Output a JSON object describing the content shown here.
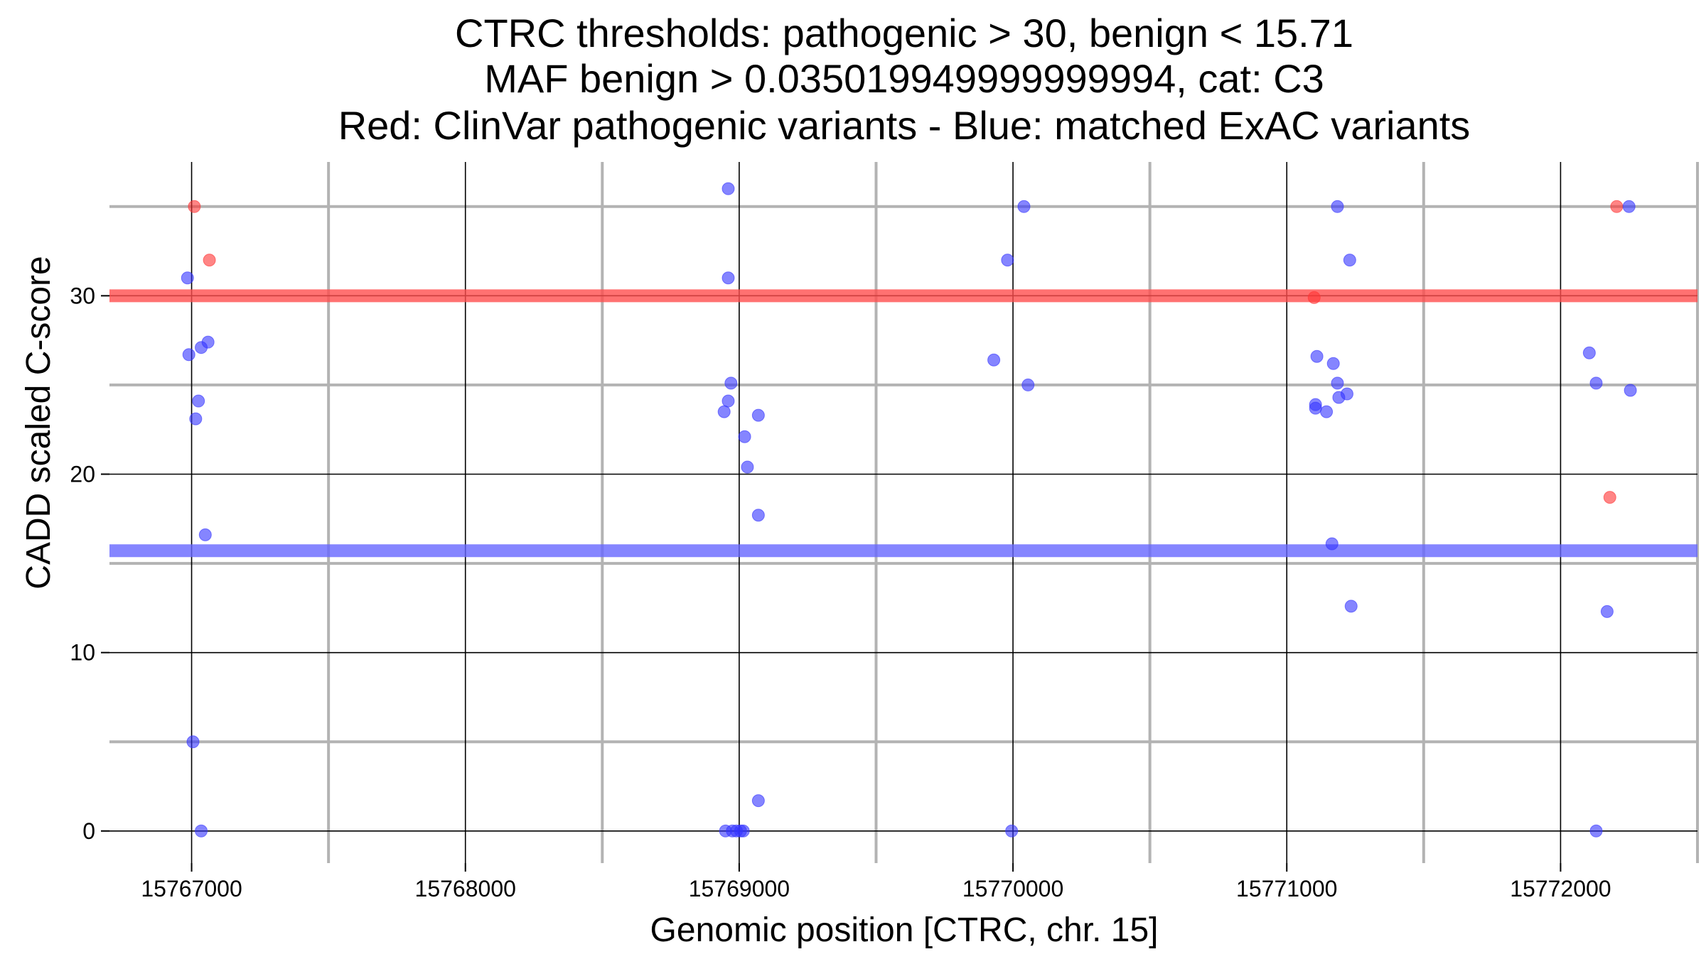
{
  "chart_data": {
    "type": "scatter",
    "title_lines": [
      "CTRC thresholds: pathogenic > 30, benign < 15.71",
      "MAF benign > 0.035019949999999994, cat: C3",
      "Red: ClinVar pathogenic variants - Blue: matched ExAC variants"
    ],
    "xlabel": "Genomic position [CTRC, chr. 15]",
    "ylabel": "CADD scaled C-score",
    "xlim": [
      15766700,
      15772500
    ],
    "ylim": [
      -1.8,
      37.5
    ],
    "x_major_ticks": [
      15767000,
      15768000,
      15769000,
      15770000,
      15771000,
      15772000
    ],
    "x_tick_labels": [
      "15767000",
      "15768000",
      "15769000",
      "15770000",
      "15771000",
      "15772000"
    ],
    "x_minor_ticks": [
      15767500,
      15768500,
      15769500,
      15770500,
      15771500,
      15772500
    ],
    "y_major_ticks": [
      0,
      10,
      20,
      30
    ],
    "y_tick_labels": [
      "0",
      "10",
      "20",
      "30"
    ],
    "y_minor_ticks": [
      5,
      15,
      25,
      35
    ],
    "thresholds": [
      {
        "name": "pathogenic",
        "value": 30,
        "color": "#ff4d4d"
      },
      {
        "name": "benign",
        "value": 15.71,
        "color": "#6666ff"
      }
    ],
    "series": [
      {
        "name": "ClinVar pathogenic variants",
        "color": "#ff3333",
        "points": [
          [
            15767010,
            35
          ],
          [
            15767065,
            32
          ],
          [
            15771100,
            29.9
          ],
          [
            15772205,
            35
          ],
          [
            15772180,
            18.7
          ]
        ]
      },
      {
        "name": "matched ExAC variants",
        "color": "#3333ff",
        "points": [
          [
            15766985,
            31
          ],
          [
            15766990,
            26.7
          ],
          [
            15767035,
            27.1
          ],
          [
            15767060,
            27.4
          ],
          [
            15767025,
            24.1
          ],
          [
            15767015,
            23.1
          ],
          [
            15767050,
            16.6
          ],
          [
            15767005,
            5
          ],
          [
            15767035,
            0
          ],
          [
            15768960,
            36
          ],
          [
            15768960,
            31
          ],
          [
            15768970,
            25.1
          ],
          [
            15768960,
            24.1
          ],
          [
            15768945,
            23.5
          ],
          [
            15769070,
            23.3
          ],
          [
            15769020,
            22.1
          ],
          [
            15769030,
            20.4
          ],
          [
            15769070,
            17.7
          ],
          [
            15769070,
            1.7
          ],
          [
            15768950,
            0
          ],
          [
            15768975,
            0
          ],
          [
            15768990,
            0
          ],
          [
            15769005,
            0
          ],
          [
            15769015,
            0
          ],
          [
            15770040,
            35
          ],
          [
            15769980,
            32
          ],
          [
            15769930,
            26.4
          ],
          [
            15770055,
            25
          ],
          [
            15769995,
            0
          ],
          [
            15771185,
            35
          ],
          [
            15771230,
            32
          ],
          [
            15771110,
            26.6
          ],
          [
            15771170,
            26.2
          ],
          [
            15771185,
            25.1
          ],
          [
            15771220,
            24.5
          ],
          [
            15771190,
            24.3
          ],
          [
            15771105,
            23.9
          ],
          [
            15771105,
            23.7
          ],
          [
            15771145,
            23.5
          ],
          [
            15771165,
            16.1
          ],
          [
            15771235,
            12.6
          ],
          [
            15772250,
            35
          ],
          [
            15772105,
            26.8
          ],
          [
            15772130,
            25.1
          ],
          [
            15772255,
            24.7
          ],
          [
            15772170,
            12.3
          ],
          [
            15772130,
            0
          ]
        ]
      }
    ]
  }
}
